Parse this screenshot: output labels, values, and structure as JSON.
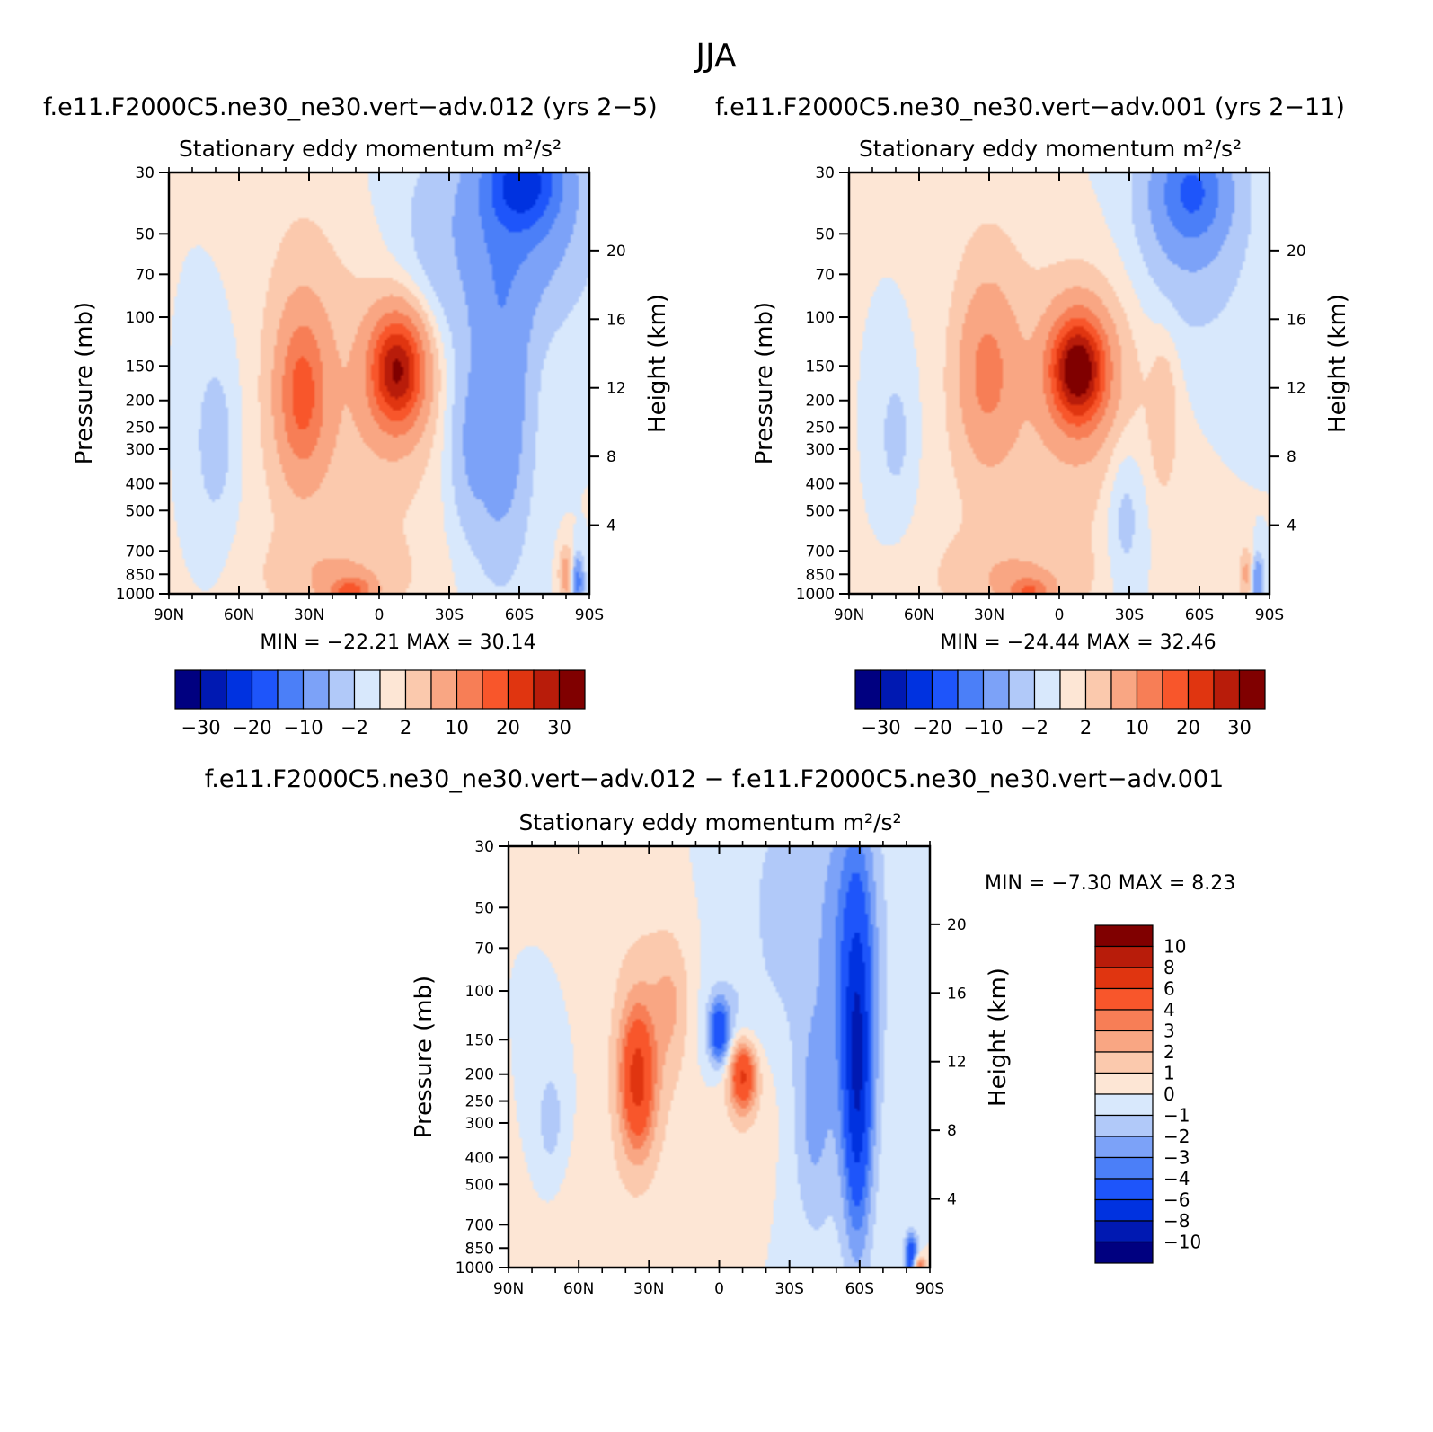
{
  "figure_title": "JJA",
  "colors": {
    "neg": [
      "#000080",
      "#0019b2",
      "#0032e0",
      "#1e55fa",
      "#4b7ff8",
      "#7ca2f8",
      "#b1c9f9",
      "#d8e8fc"
    ],
    "pos": [
      "#fde6d5",
      "#fbc9ad",
      "#f9a683",
      "#f77e56",
      "#f8562b",
      "#e03510",
      "#b81c0a",
      "#800000"
    ]
  },
  "chart_data": [
    {
      "type": "contour",
      "id": "p1",
      "case_label": "f.e11.F2000C5.ne30_ne30.vert−adv.012 (yrs 2−5)",
      "title": "Stationary eddy momentum",
      "units": "m²/s²",
      "ylabel": "Pressure (mb)",
      "ylabel_right": "Height (km)",
      "x_ticks": [
        "90N",
        "60N",
        "30N",
        "0",
        "30S",
        "60S",
        "90S"
      ],
      "x_range": [
        90,
        -90
      ],
      "y_ticks": [
        "30",
        "50",
        "70",
        "100",
        "150",
        "200",
        "250",
        "300",
        "400",
        "500",
        "700",
        "850",
        "1000"
      ],
      "y_range_mb": [
        30,
        1000
      ],
      "height_ticks": [
        "20",
        "16",
        "12",
        "8",
        "4"
      ],
      "min_label": "MIN =  −22.21",
      "max_label": "MAX =   30.14",
      "min": -22.21,
      "max": 30.14,
      "levels": [
        -30,
        -25,
        -20,
        -15,
        -10,
        -5,
        -2,
        0,
        2,
        5,
        10,
        15,
        20,
        25,
        30
      ],
      "colorbar_labels": [
        "−30",
        "−20",
        "−10",
        "−2",
        "2",
        "10",
        "20",
        "30"
      ],
      "blobs": [
        {
          "lat": -62,
          "p": 32,
          "a": -17,
          "sx": 11,
          "sy": 0.28
        },
        {
          "lat": -60,
          "p": 45,
          "a": -8,
          "sx": 20,
          "sy": 0.6
        },
        {
          "lat": -52,
          "p": 200,
          "a": -9,
          "sx": 9,
          "sy": 0.9
        },
        {
          "lat": -38,
          "p": 300,
          "a": -4,
          "sx": 7,
          "sy": 0.5
        },
        {
          "lat": -22,
          "p": 100,
          "a": -4,
          "sx": 15,
          "sy": 0.9
        },
        {
          "lat": 70,
          "p": 280,
          "a": -3.5,
          "sx": 7,
          "sy": 0.55
        },
        {
          "lat": 33,
          "p": 190,
          "a": 14,
          "sx": 7,
          "sy": 0.45
        },
        {
          "lat": 33,
          "p": 120,
          "a": 3,
          "sx": 14,
          "sy": 1.0
        },
        {
          "lat": -8,
          "p": 155,
          "a": 28,
          "sx": 8,
          "sy": 0.32
        },
        {
          "lat": -10,
          "p": 170,
          "a": 5,
          "sx": 20,
          "sy": 0.7
        },
        {
          "lat": 15,
          "p": 450,
          "a": 1.5,
          "sx": 30,
          "sy": 0.9
        },
        {
          "lat": 12,
          "p": 980,
          "a": 14,
          "sx": 6,
          "sy": 0.08
        },
        {
          "lat": 18,
          "p": 880,
          "a": 4,
          "sx": 20,
          "sy": 0.25
        },
        {
          "lat": -80,
          "p": 850,
          "a": 8,
          "sx": 2,
          "sy": 0.15
        },
        {
          "lat": -85,
          "p": 900,
          "a": -12,
          "sx": 1.8,
          "sy": 0.14
        },
        {
          "lat": -45,
          "p": 220,
          "a": 3,
          "sx": 2.5,
          "sy": 0.4
        }
      ]
    },
    {
      "type": "contour",
      "id": "p2",
      "case_label": "f.e11.F2000C5.ne30_ne30.vert−adv.001 (yrs 2−11)",
      "title": "Stationary eddy momentum",
      "units": "m²/s²",
      "ylabel": "Pressure (mb)",
      "ylabel_right": "Height (km)",
      "x_ticks": [
        "90N",
        "60N",
        "30N",
        "0",
        "30S",
        "60S",
        "90S"
      ],
      "x_range": [
        90,
        -90
      ],
      "y_ticks": [
        "30",
        "50",
        "70",
        "100",
        "150",
        "200",
        "250",
        "300",
        "400",
        "500",
        "700",
        "850",
        "1000"
      ],
      "y_range_mb": [
        30,
        1000
      ],
      "height_ticks": [
        "20",
        "16",
        "12",
        "8",
        "4"
      ],
      "min_label": "MIN =  −24.44",
      "max_label": "MAX =   32.46",
      "min": -24.44,
      "max": 32.46,
      "levels": [
        -30,
        -25,
        -20,
        -15,
        -10,
        -5,
        -2,
        0,
        2,
        5,
        10,
        15,
        20,
        25,
        30
      ],
      "colorbar_labels": [
        "−30",
        "−20",
        "−10",
        "−2",
        "2",
        "10",
        "20",
        "30"
      ],
      "blobs": [
        {
          "lat": -57,
          "p": 35,
          "a": -12,
          "sx": 10,
          "sy": 0.3
        },
        {
          "lat": -55,
          "p": 45,
          "a": -5,
          "sx": 18,
          "sy": 0.7
        },
        {
          "lat": -28,
          "p": 500,
          "a": -4,
          "sx": 6,
          "sy": 0.5
        },
        {
          "lat": 70,
          "p": 270,
          "a": -3,
          "sx": 6,
          "sy": 0.45
        },
        {
          "lat": 31,
          "p": 160,
          "a": 8,
          "sx": 8,
          "sy": 0.45
        },
        {
          "lat": 31,
          "p": 120,
          "a": 3,
          "sx": 12,
          "sy": 0.9
        },
        {
          "lat": -8,
          "p": 155,
          "a": 32,
          "sx": 8,
          "sy": 0.3
        },
        {
          "lat": -10,
          "p": 170,
          "a": 5,
          "sx": 20,
          "sy": 0.7
        },
        {
          "lat": -45,
          "p": 220,
          "a": 3.5,
          "sx": 4,
          "sy": 0.45
        },
        {
          "lat": 15,
          "p": 450,
          "a": 1.5,
          "sx": 30,
          "sy": 0.9
        },
        {
          "lat": 13,
          "p": 980,
          "a": 12,
          "sx": 6,
          "sy": 0.08
        },
        {
          "lat": 20,
          "p": 880,
          "a": 4,
          "sx": 22,
          "sy": 0.25
        },
        {
          "lat": -80,
          "p": 850,
          "a": 6,
          "sx": 2,
          "sy": 0.15
        },
        {
          "lat": -85,
          "p": 900,
          "a": -10,
          "sx": 1.8,
          "sy": 0.14
        }
      ]
    },
    {
      "type": "contour",
      "id": "p3",
      "case_label": "f.e11.F2000C5.ne30_ne30.vert−adv.012 − f.e11.F2000C5.ne30_ne30.vert−adv.001",
      "title": "Stationary eddy momentum",
      "units": "m²/s²",
      "ylabel": "Pressure (mb)",
      "ylabel_right": "Height (km)",
      "x_ticks": [
        "90N",
        "60N",
        "30N",
        "0",
        "30S",
        "60S",
        "90S"
      ],
      "x_range": [
        90,
        -90
      ],
      "y_ticks": [
        "30",
        "50",
        "70",
        "100",
        "150",
        "200",
        "250",
        "300",
        "400",
        "500",
        "700",
        "850",
        "1000"
      ],
      "y_range_mb": [
        30,
        1000
      ],
      "height_ticks": [
        "20",
        "16",
        "12",
        "8",
        "4"
      ],
      "min_label": "MIN =   −7.30",
      "max_label": "MAX =    8.23",
      "min": -7.3,
      "max": 8.23,
      "levels": [
        -10,
        -8,
        -6,
        -4,
        -3,
        -2,
        -1,
        0,
        1,
        2,
        3,
        4,
        6,
        8,
        10
      ],
      "colorbar_labels": [
        "10",
        "8",
        "6",
        "4",
        "3",
        "2",
        "1",
        "0",
        "−1",
        "−2",
        "−3",
        "−4",
        "−6",
        "−8",
        "−10"
      ],
      "blobs": [
        {
          "lat": -59,
          "p": 200,
          "a": -6,
          "sx": 4,
          "sy": 0.9
        },
        {
          "lat": -58,
          "p": 100,
          "a": -3,
          "sx": 8,
          "sy": 1.3
        },
        {
          "lat": -40,
          "p": 300,
          "a": -2,
          "sx": 6,
          "sy": 0.7
        },
        {
          "lat": 0,
          "p": 140,
          "a": -5,
          "sx": 3,
          "sy": 0.18
        },
        {
          "lat": -5,
          "p": 140,
          "a": -1.5,
          "sx": 10,
          "sy": 0.35
        },
        {
          "lat": 72,
          "p": 300,
          "a": -1.5,
          "sx": 5,
          "sy": 0.4
        },
        {
          "lat": 35,
          "p": 210,
          "a": 5.5,
          "sx": 5,
          "sy": 0.4
        },
        {
          "lat": 33,
          "p": 160,
          "a": 1.5,
          "sx": 12,
          "sy": 0.9
        },
        {
          "lat": 20,
          "p": 110,
          "a": 1.5,
          "sx": 6,
          "sy": 0.4
        },
        {
          "lat": -10,
          "p": 200,
          "a": 6,
          "sx": 4,
          "sy": 0.2
        },
        {
          "lat": -10,
          "p": 210,
          "a": 1.2,
          "sx": 10,
          "sy": 0.5
        },
        {
          "lat": -35,
          "p": 50,
          "a": -1.5,
          "sx": 20,
          "sy": 0.9
        },
        {
          "lat": -82,
          "p": 920,
          "a": -6,
          "sx": 2,
          "sy": 0.14
        },
        {
          "lat": -85,
          "p": 980,
          "a": 5,
          "sx": 2,
          "sy": 0.06
        },
        {
          "lat": 60,
          "p": 700,
          "a": 0.6,
          "sx": 15,
          "sy": 0.5
        }
      ]
    }
  ]
}
